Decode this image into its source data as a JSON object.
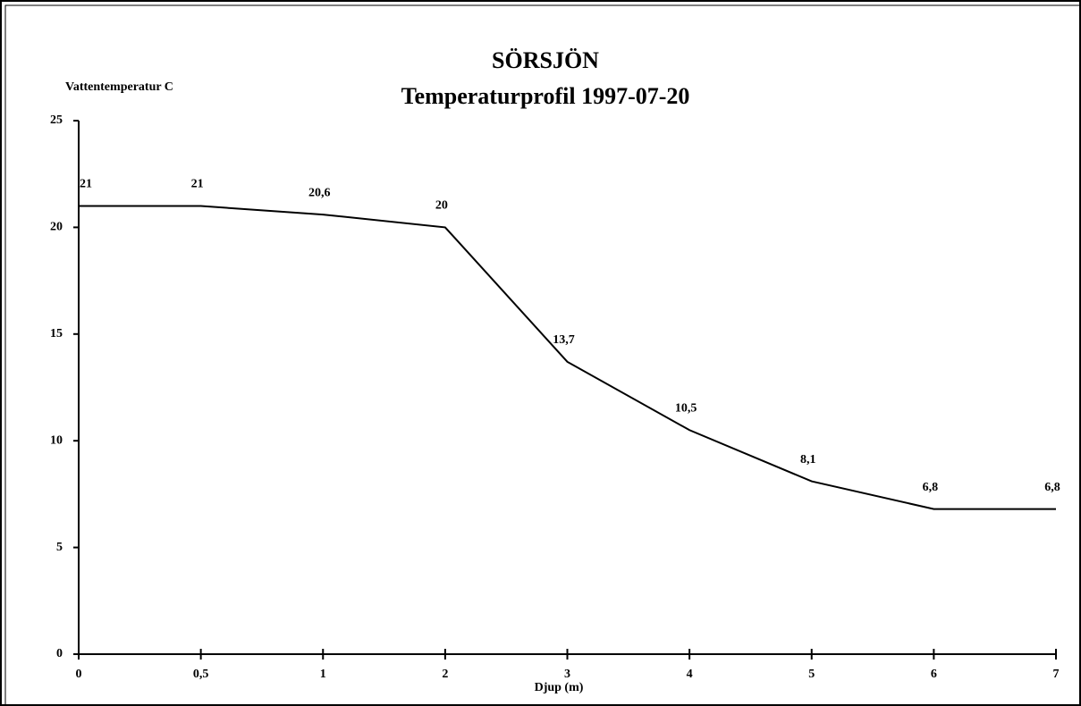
{
  "chart_data": {
    "type": "line",
    "title": "SÖRSJÖN",
    "subtitle": "Temperaturprofil 1997-07-20",
    "y_label": "Vattentemperatur C",
    "x_label": "Djup (m)",
    "categories": [
      "0",
      "0,5",
      "1",
      "2",
      "3",
      "4",
      "5",
      "6",
      "7"
    ],
    "values": [
      21,
      21,
      20.6,
      20,
      13.7,
      10.5,
      8.1,
      6.8,
      6.8
    ],
    "value_labels": [
      "21",
      "21",
      "20,6",
      "20",
      "13,7",
      "10,5",
      "8,1",
      "6,8",
      "6,8"
    ],
    "color": "#000000",
    "ylim": [
      0,
      25
    ],
    "yticks": [
      0,
      5,
      10,
      15,
      20,
      25
    ]
  }
}
